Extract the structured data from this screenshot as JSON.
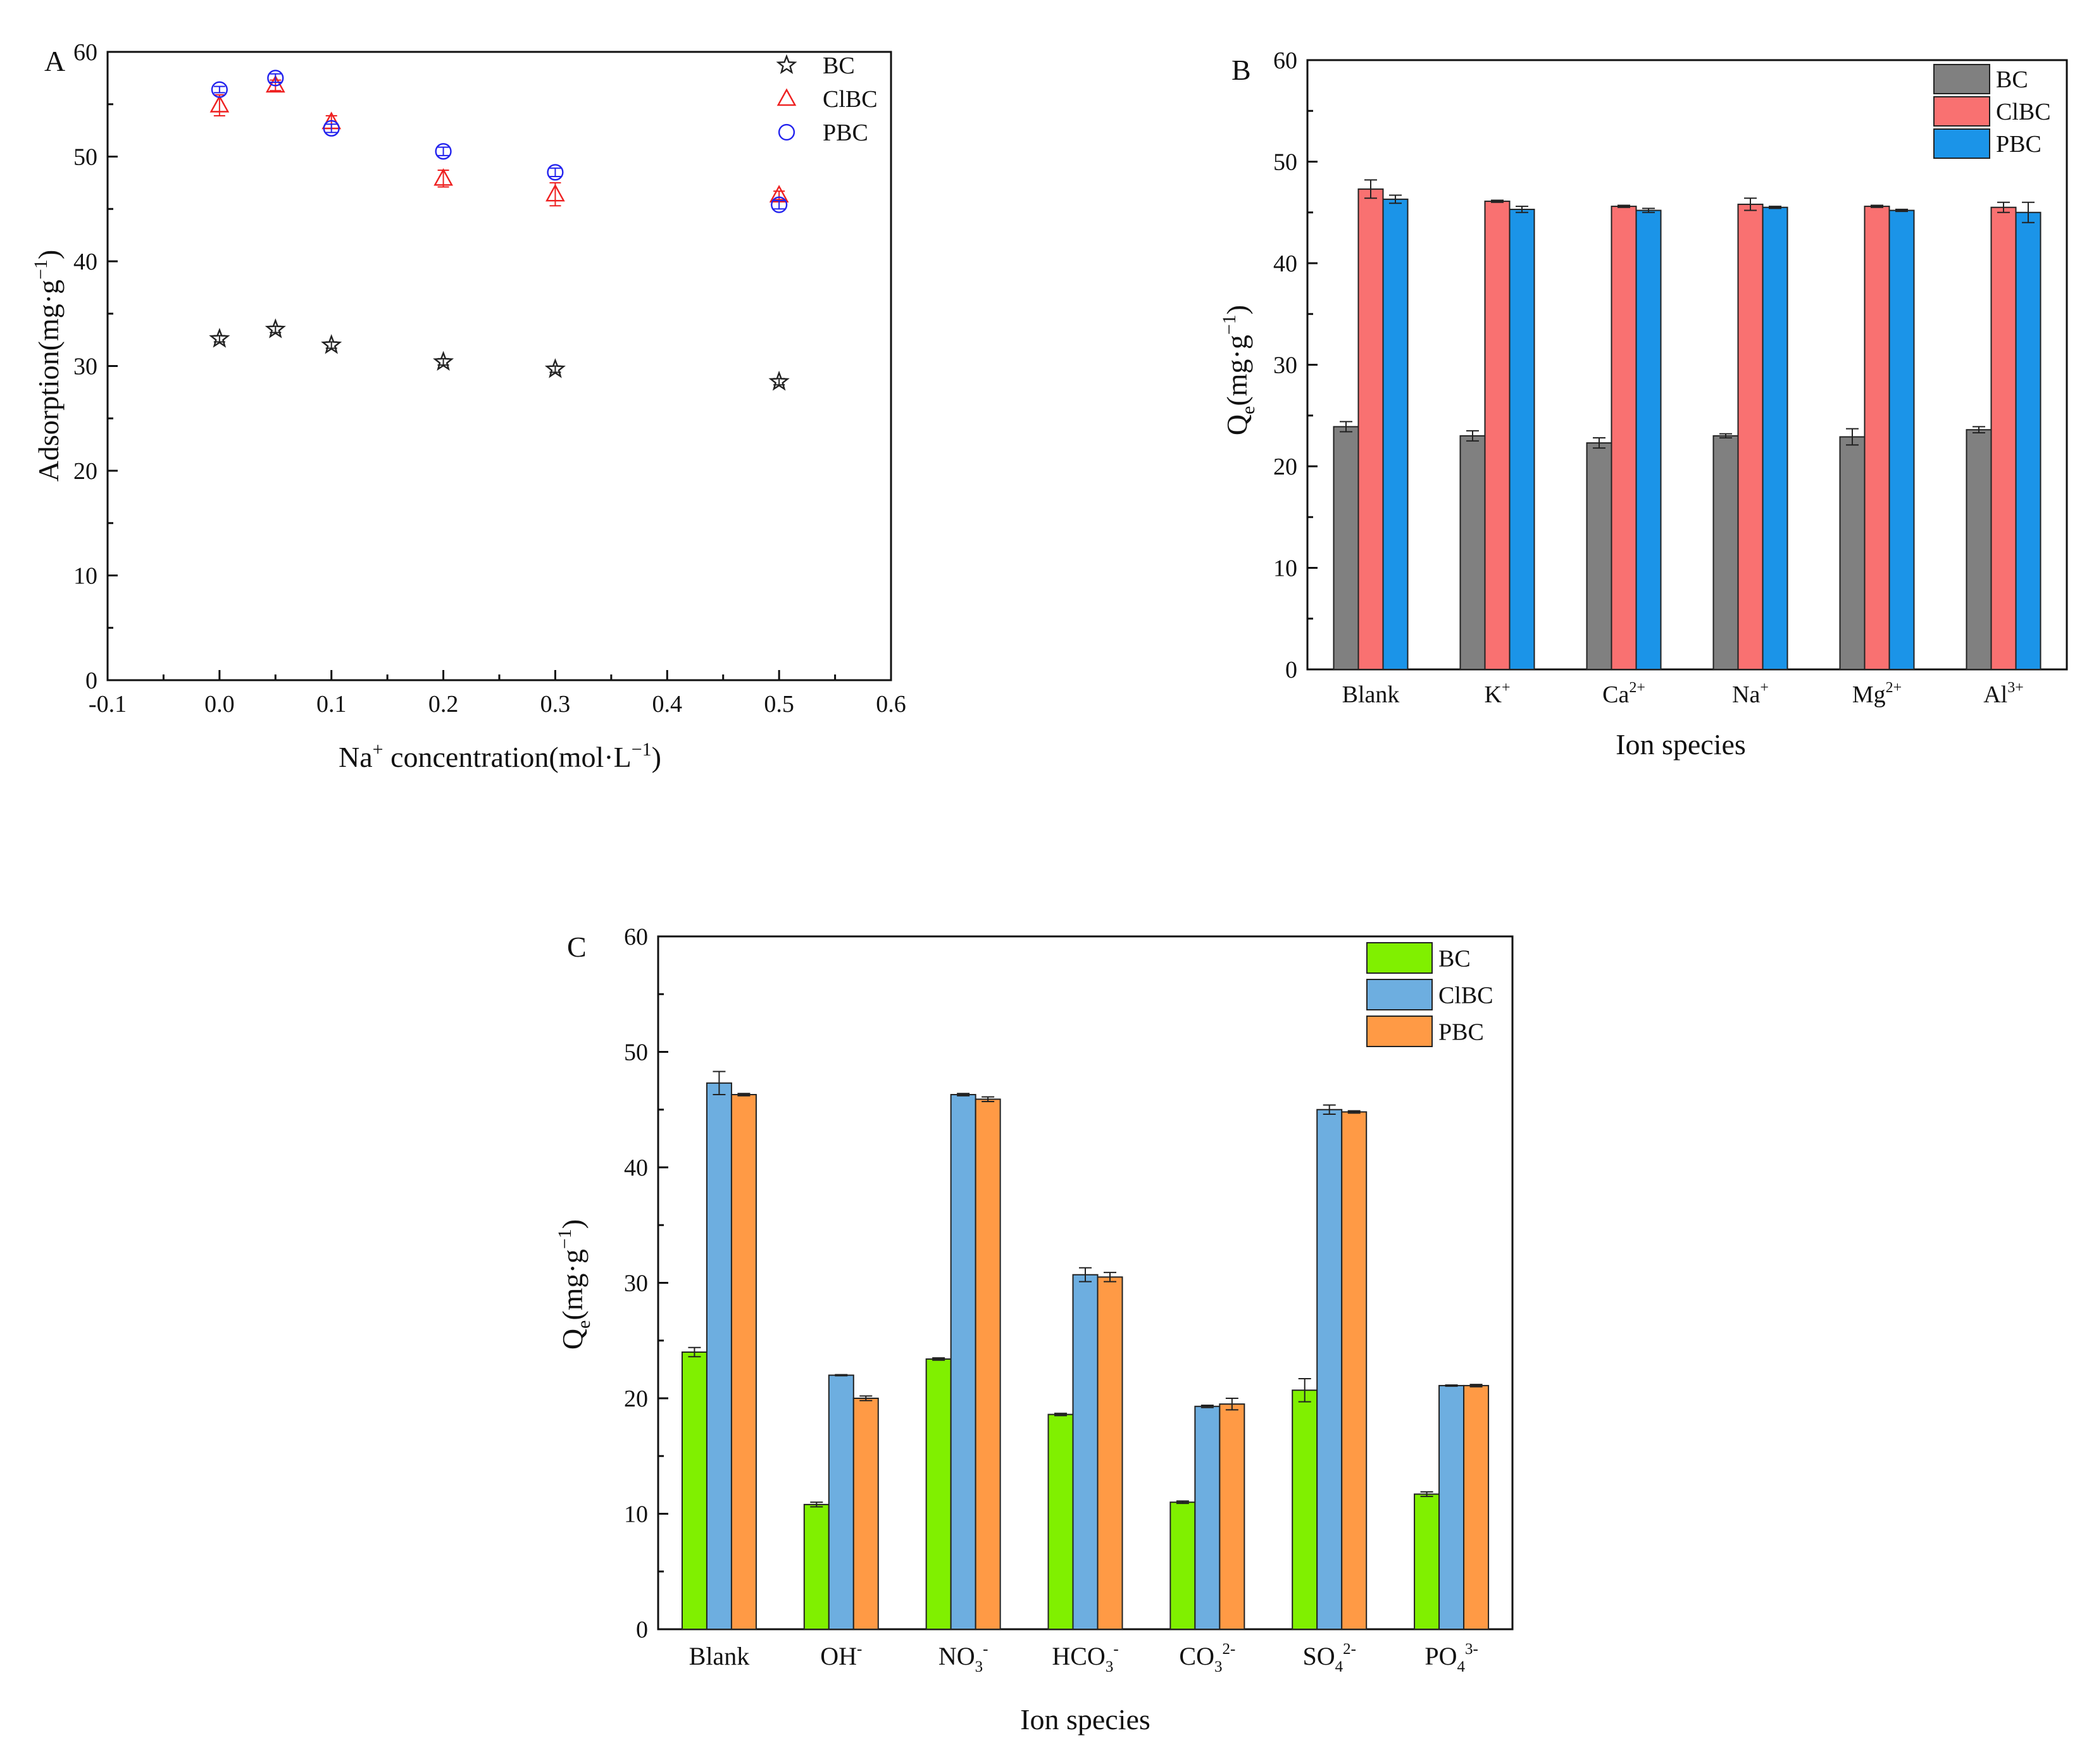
{
  "chart_data": [
    {
      "panel": "A",
      "type": "scatter",
      "xlabel": "Na",
      "xlabel_sup": "+",
      "xlabel_tail": " concentration(mol·L",
      "xlabel_tail_sup": "−1",
      "xlabel_close": ")",
      "ylabel": "Adsorption(mg·g",
      "ylabel_sup": "−1",
      "ylabel_close": ")",
      "xlim": [
        -0.1,
        0.6
      ],
      "ylim": [
        0,
        60
      ],
      "x_ticks": [
        -0.1,
        0.0,
        0.1,
        0.2,
        0.3,
        0.4,
        0.5,
        0.6
      ],
      "x_tick_labels": [
        "-0.1",
        "0.0",
        "0.1",
        "0.2",
        "0.3",
        "0.4",
        "0.5",
        "0.6"
      ],
      "y_ticks": [
        0,
        10,
        20,
        30,
        40,
        50,
        60
      ],
      "y_tick_labels": [
        "0",
        "10",
        "20",
        "30",
        "40",
        "50",
        "60"
      ],
      "legend_position": "top-right",
      "series": [
        {
          "name": "BC",
          "marker": "star",
          "color": "#222222",
          "x": [
            0.0,
            0.05,
            0.1,
            0.2,
            0.3,
            0.5
          ],
          "y": [
            32.6,
            33.5,
            32.0,
            30.4,
            29.7,
            28.5
          ],
          "err": [
            0.3,
            0.3,
            0.3,
            0.3,
            0.3,
            0.3
          ]
        },
        {
          "name": "ClBC",
          "marker": "triangle",
          "color": "#ee2020",
          "x": [
            0.0,
            0.05,
            0.1,
            0.2,
            0.3,
            0.5
          ],
          "y": [
            54.9,
            56.8,
            53.3,
            47.9,
            46.4,
            46.3
          ],
          "err": [
            1.0,
            0.5,
            0.6,
            0.8,
            1.1,
            0.4
          ]
        },
        {
          "name": "PBC",
          "marker": "circle",
          "color": "#2222ee",
          "x": [
            0.0,
            0.05,
            0.1,
            0.2,
            0.3,
            0.5
          ],
          "y": [
            56.4,
            57.5,
            52.7,
            50.5,
            48.5,
            45.4
          ],
          "err": [
            0.3,
            0.4,
            0.4,
            0.4,
            0.4,
            0.4
          ]
        }
      ]
    },
    {
      "panel": "B",
      "type": "bar",
      "xlabel": "Ion species",
      "ylabel": "Q",
      "ylabel_sub": "e",
      "ylabel_tail": "(mg·g",
      "ylabel_sup": "−1",
      "ylabel_close": ")",
      "ylim": [
        0,
        60
      ],
      "y_ticks": [
        0,
        10,
        20,
        30,
        40,
        50,
        60
      ],
      "y_tick_labels": [
        "0",
        "10",
        "20",
        "30",
        "40",
        "50",
        "60"
      ],
      "legend_position": "top-right",
      "categories": [
        {
          "base": "Blank"
        },
        {
          "base": "K",
          "sup": "+"
        },
        {
          "base": "Ca",
          "sup": "2+"
        },
        {
          "base": "Na",
          "sup": "+"
        },
        {
          "base": "Mg",
          "sup": "2+"
        },
        {
          "base": "Al",
          "sup": "3+"
        }
      ],
      "series": [
        {
          "name": "BC",
          "color": "#808080",
          "values": [
            23.9,
            23.0,
            22.3,
            23.0,
            22.9,
            23.6
          ],
          "err": [
            0.5,
            0.5,
            0.5,
            0.2,
            0.8,
            0.3
          ]
        },
        {
          "name": "ClBC",
          "color": "#f97171",
          "values": [
            47.3,
            46.1,
            45.6,
            45.8,
            45.6,
            45.5
          ],
          "err": [
            0.9,
            0.1,
            0.1,
            0.6,
            0.1,
            0.5
          ]
        },
        {
          "name": "PBC",
          "color": "#1b94e8",
          "values": [
            46.3,
            45.3,
            45.2,
            45.5,
            45.2,
            45.0
          ],
          "err": [
            0.4,
            0.3,
            0.2,
            0.1,
            0.1,
            1.0
          ]
        }
      ]
    },
    {
      "panel": "C",
      "type": "bar",
      "xlabel": "Ion species",
      "ylabel": "Q",
      "ylabel_sub": "e",
      "ylabel_tail": "(mg·g",
      "ylabel_sup": "−1",
      "ylabel_close": ")",
      "ylim": [
        0,
        60
      ],
      "y_ticks": [
        0,
        10,
        20,
        30,
        40,
        50,
        60
      ],
      "y_tick_labels": [
        "0",
        "10",
        "20",
        "30",
        "40",
        "50",
        "60"
      ],
      "legend_position": "top-right",
      "categories": [
        {
          "base": "Blank"
        },
        {
          "base": "OH",
          "sup": "-"
        },
        {
          "base": "NO",
          "sub": "3",
          "sup": "-"
        },
        {
          "base": "HCO",
          "sub": "3",
          "sup": "-"
        },
        {
          "base": "CO",
          "sub": "3",
          "sup": "2-"
        },
        {
          "base": "SO",
          "sub": "4",
          "sup": "2-"
        },
        {
          "base": "PO",
          "sub": "4",
          "sup": "3-"
        }
      ],
      "series": [
        {
          "name": "BC",
          "color": "#80f000",
          "values": [
            24.0,
            10.8,
            23.4,
            18.6,
            11.0,
            20.7,
            11.7
          ],
          "err": [
            0.4,
            0.2,
            0.1,
            0.1,
            0.1,
            1.0,
            0.2
          ]
        },
        {
          "name": "ClBC",
          "color": "#6daee0",
          "values": [
            47.3,
            22.0,
            46.3,
            30.7,
            19.3,
            45.0,
            21.1
          ],
          "err": [
            1.0,
            0.05,
            0.1,
            0.6,
            0.1,
            0.4,
            0.05
          ]
        },
        {
          "name": "PBC",
          "color": "#ff9a45",
          "values": [
            46.3,
            20.0,
            45.9,
            30.5,
            19.5,
            44.8,
            21.1
          ],
          "err": [
            0.1,
            0.2,
            0.2,
            0.4,
            0.5,
            0.1,
            0.1
          ]
        }
      ]
    }
  ]
}
